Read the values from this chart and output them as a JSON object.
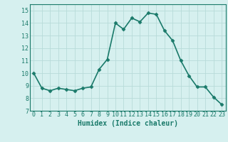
{
  "x": [
    0,
    1,
    2,
    3,
    4,
    5,
    6,
    7,
    8,
    9,
    10,
    11,
    12,
    13,
    14,
    15,
    16,
    17,
    18,
    19,
    20,
    21,
    22,
    23
  ],
  "y": [
    10.0,
    8.8,
    8.6,
    8.8,
    8.7,
    8.6,
    8.8,
    8.9,
    10.3,
    11.1,
    14.0,
    13.5,
    14.4,
    14.1,
    14.8,
    14.7,
    13.4,
    12.6,
    11.0,
    9.8,
    8.9,
    8.9,
    8.1,
    7.5
  ],
  "line_color": "#1a7a6a",
  "marker": "D",
  "marker_size": 2.5,
  "bg_color": "#d6f0ef",
  "grid_color": "#b8dbd9",
  "xlabel": "Humidex (Indice chaleur)",
  "ylim": [
    7,
    15.5
  ],
  "yticks": [
    7,
    8,
    9,
    10,
    11,
    12,
    13,
    14,
    15
  ],
  "xlim": [
    -0.5,
    23.5
  ],
  "xticks": [
    0,
    1,
    2,
    3,
    4,
    5,
    6,
    7,
    8,
    9,
    10,
    11,
    12,
    13,
    14,
    15,
    16,
    17,
    18,
    19,
    20,
    21,
    22,
    23
  ],
  "xtick_labels": [
    "0",
    "1",
    "2",
    "3",
    "4",
    "5",
    "6",
    "7",
    "8",
    "9",
    "10",
    "11",
    "12",
    "13",
    "14",
    "15",
    "16",
    "17",
    "18",
    "19",
    "20",
    "21",
    "22",
    "23"
  ],
  "tick_fontsize": 6,
  "xlabel_fontsize": 7,
  "linewidth": 1.2
}
